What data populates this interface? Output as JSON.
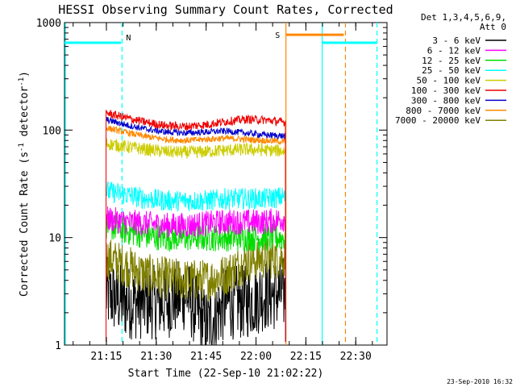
{
  "chart_data": {
    "type": "line",
    "title": "HESSI Observing Summary Count Rates, Corrected",
    "xlabel": "Start Time (22-Sep-10 21:02:22)",
    "ylabel_main": "Corrected Count Rate (s",
    "ylabel_sup1": "-1",
    "ylabel_mid": " detector",
    "ylabel_sup2": "-1",
    "ylabel_end": ")",
    "y_scale": "log",
    "ylim": [
      1,
      1000
    ],
    "xlim_minutes": [
      0,
      97
    ],
    "x_ticks": [
      "21:15",
      "21:30",
      "21:45",
      "22:00",
      "22:15",
      "22:30"
    ],
    "x_tick_minutes": [
      12.6,
      27.6,
      42.6,
      57.6,
      72.6,
      87.6
    ],
    "y_ticks": [
      "1",
      "10",
      "100",
      "1000"
    ],
    "y_tick_values": [
      1,
      10,
      100,
      1000
    ],
    "grid": false,
    "legend_header": [
      "Det 1,3,4,5,6,9,",
      "Att 0"
    ],
    "legend_position": "right",
    "data_span_minutes": [
      12.5,
      66.5
    ],
    "series": [
      {
        "name": "3 - 6 keV",
        "color": "#000000",
        "values": [
          3,
          2.5,
          2.5,
          2.5,
          3,
          1.5,
          2.5,
          2.5,
          3,
          3
        ]
      },
      {
        "name": "6 - 12 keV",
        "color": "#ff00ff",
        "values": [
          15,
          14,
          13.5,
          13,
          13,
          13.5,
          14,
          14,
          14,
          15
        ]
      },
      {
        "name": "12 - 25 keV",
        "color": "#00dd00",
        "values": [
          13,
          11.5,
          10.5,
          10,
          10,
          10,
          10,
          10,
          10,
          10
        ]
      },
      {
        "name": "25 - 50 keV",
        "color": "#00ffff",
        "values": [
          27,
          25,
          23,
          22,
          22,
          22,
          23,
          23,
          23,
          24
        ]
      },
      {
        "name": "50 - 100 keV",
        "color": "#cccc00",
        "values": [
          75,
          70,
          66,
          63,
          62,
          63,
          65,
          66,
          65,
          64
        ]
      },
      {
        "name": "100 - 300 keV",
        "color": "#ee0000",
        "values": [
          145,
          130,
          118,
          110,
          108,
          112,
          120,
          126,
          124,
          118
        ]
      },
      {
        "name": "300 - 800 keV",
        "color": "#0000cc",
        "values": [
          125,
          112,
          102,
          96,
          94,
          96,
          98,
          94,
          90,
          88
        ]
      },
      {
        "name": "800 - 7000 keV",
        "color": "#ff8800",
        "values": [
          105,
          95,
          87,
          82,
          80,
          82,
          84,
          82,
          80,
          78
        ]
      },
      {
        "name": "7000 - 20000 keV",
        "color": "#808000",
        "values": [
          6.5,
          5.5,
          4.5,
          4.2,
          4,
          4,
          4.5,
          6,
          6.5,
          6.5
        ]
      }
    ],
    "series_x_minutes": [
      12.5,
      18.5,
      24.5,
      30.5,
      36.5,
      42.5,
      48.5,
      54.5,
      60.5,
      66.5
    ],
    "bars": [
      {
        "label": "",
        "color": "#00ffff",
        "x_minutes": [
          0,
          17
        ],
        "y": 650
      },
      {
        "label": "S",
        "color": "#ff8800",
        "x_minutes": [
          66.5,
          84
        ],
        "y": 770
      },
      {
        "label": "",
        "color": "#00ffff",
        "x_minutes": [
          77.5,
          94
        ],
        "y": 650
      }
    ],
    "markers": [
      {
        "label": "N",
        "color": "#00ffff",
        "style": "dashed",
        "x_minutes": 17.3
      },
      {
        "label": "",
        "color": "#00ffff",
        "style": "solid",
        "x_minutes": 0
      },
      {
        "label": "",
        "color": "#ff8800",
        "style": "solid",
        "x_minutes": 66.6
      },
      {
        "label": "",
        "color": "#00ffff",
        "style": "solid",
        "x_minutes": 77.5
      },
      {
        "label": "",
        "color": "#ff8800",
        "style": "dashed",
        "x_minutes": 84.5
      },
      {
        "label": "",
        "color": "#00ffff",
        "style": "dashed",
        "x_minutes": 94
      }
    ],
    "footer_date": "23-Sep-2010 16:32"
  }
}
